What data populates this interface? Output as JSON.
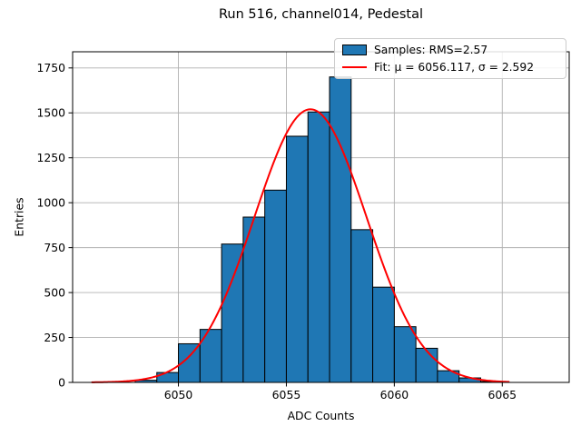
{
  "title": "Run 516, channel014, Pedestal",
  "chart_data": {
    "type": "bar",
    "subtype": "histogram_with_gaussian_fit",
    "title": "Run 516, channel014, Pedestal",
    "xlabel": "ADC Counts",
    "ylabel": "Entries",
    "bin_start": 6048,
    "bin_width": 1,
    "bin_edges": [
      6048,
      6049,
      6050,
      6051,
      6052,
      6053,
      6054,
      6055,
      6056,
      6057,
      6058,
      6059,
      6060,
      6061,
      6062,
      6063,
      6064,
      6065
    ],
    "counts": [
      12,
      55,
      215,
      295,
      770,
      920,
      1070,
      1370,
      1505,
      1700,
      850,
      530,
      310,
      190,
      65,
      25,
      5
    ],
    "fit": {
      "type": "gaussian",
      "mu": 6056.117,
      "sigma": 2.592,
      "amplitude": 1520,
      "x_start": 6046,
      "x_end": 6065.3,
      "color": "#ff0000",
      "line_width": 2
    },
    "x_ticks": [
      6050,
      6055,
      6060,
      6065
    ],
    "y_ticks": [
      0,
      250,
      500,
      750,
      1000,
      1250,
      1500,
      1750
    ],
    "xlim": [
      6045.1,
      6068.1
    ],
    "ylim": [
      0,
      1840
    ],
    "grid": true,
    "grid_color": "#b0b0b0",
    "bar_color": "#1f77b4",
    "bar_edge_color": "#000000",
    "spine_color": "#000000",
    "legend": {
      "position": "upper right",
      "entries": [
        {
          "label": "Samples: RMS=2.57",
          "swatch": "patch",
          "color": "#1f77b4"
        },
        {
          "label": "Fit: μ = 6056.117, σ = 2.592",
          "swatch": "line",
          "color": "#ff0000"
        }
      ]
    }
  }
}
